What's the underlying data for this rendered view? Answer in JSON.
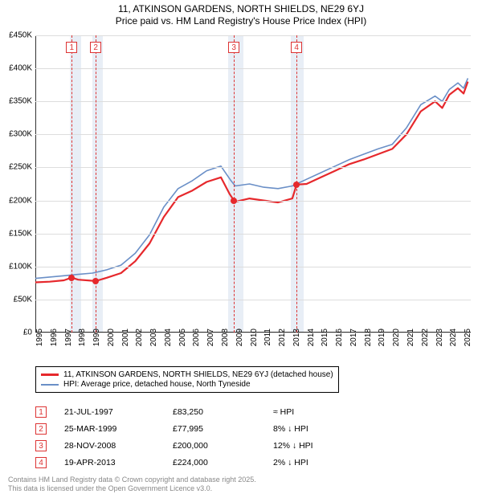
{
  "title_line1": "11, ATKINSON GARDENS, NORTH SHIELDS, NE29 6YJ",
  "title_line2": "Price paid vs. HM Land Registry's House Price Index (HPI)",
  "chart": {
    "type": "line",
    "xlim": [
      1995,
      2025.5
    ],
    "ylim": [
      0,
      450000
    ],
    "ytick_step": 50000,
    "yticks_labels": [
      "£0",
      "£50K",
      "£100K",
      "£150K",
      "£200K",
      "£250K",
      "£300K",
      "£350K",
      "£400K",
      "£450K"
    ],
    "xticks": [
      1995,
      1996,
      1997,
      1998,
      1999,
      2000,
      2001,
      2002,
      2003,
      2004,
      2005,
      2006,
      2007,
      2008,
      2009,
      2010,
      2011,
      2012,
      2013,
      2014,
      2015,
      2016,
      2017,
      2018,
      2019,
      2020,
      2021,
      2022,
      2023,
      2024,
      2025
    ],
    "background_color": "#ffffff",
    "grid_color": "#dddddd",
    "axis_color": "#333333",
    "shade_color": "#e8eef6",
    "marker_line_color": "#dd3333",
    "series": {
      "property": {
        "color": "#e6282c",
        "width": 2.2,
        "label": "11, ATKINSON GARDENS, NORTH SHIELDS, NE29 6YJ (detached house)",
        "points": [
          [
            1995,
            76000
          ],
          [
            1996,
            77000
          ],
          [
            1997,
            79000
          ],
          [
            1997.55,
            83250
          ],
          [
            1998,
            80000
          ],
          [
            1999.23,
            77995
          ],
          [
            2000,
            83000
          ],
          [
            2001,
            90000
          ],
          [
            2002,
            108000
          ],
          [
            2003,
            135000
          ],
          [
            2004,
            175000
          ],
          [
            2005,
            205000
          ],
          [
            2006,
            215000
          ],
          [
            2007,
            228000
          ],
          [
            2008,
            235000
          ],
          [
            2008.6,
            210000
          ],
          [
            2008.91,
            200000
          ],
          [
            2009,
            198000
          ],
          [
            2010,
            203000
          ],
          [
            2011,
            200000
          ],
          [
            2012,
            197000
          ],
          [
            2013,
            203000
          ],
          [
            2013.3,
            224000
          ],
          [
            2014,
            225000
          ],
          [
            2015,
            235000
          ],
          [
            2016,
            245000
          ],
          [
            2017,
            255000
          ],
          [
            2018,
            262000
          ],
          [
            2019,
            270000
          ],
          [
            2020,
            278000
          ],
          [
            2021,
            300000
          ],
          [
            2022,
            335000
          ],
          [
            2023,
            350000
          ],
          [
            2023.5,
            340000
          ],
          [
            2024,
            360000
          ],
          [
            2024.6,
            370000
          ],
          [
            2025,
            362000
          ],
          [
            2025.3,
            380000
          ]
        ]
      },
      "hpi": {
        "color": "#6a8fc7",
        "width": 1.6,
        "label": "HPI: Average price, detached house, North Tyneside",
        "points": [
          [
            1995,
            82000
          ],
          [
            1996,
            84000
          ],
          [
            1997,
            86000
          ],
          [
            1998,
            88000
          ],
          [
            1999,
            90000
          ],
          [
            2000,
            95000
          ],
          [
            2001,
            102000
          ],
          [
            2002,
            120000
          ],
          [
            2003,
            148000
          ],
          [
            2004,
            190000
          ],
          [
            2005,
            218000
          ],
          [
            2006,
            230000
          ],
          [
            2007,
            245000
          ],
          [
            2008,
            252000
          ],
          [
            2008.7,
            230000
          ],
          [
            2009,
            222000
          ],
          [
            2010,
            225000
          ],
          [
            2011,
            220000
          ],
          [
            2012,
            218000
          ],
          [
            2013,
            222000
          ],
          [
            2014,
            232000
          ],
          [
            2015,
            242000
          ],
          [
            2016,
            252000
          ],
          [
            2017,
            262000
          ],
          [
            2018,
            270000
          ],
          [
            2019,
            278000
          ],
          [
            2020,
            285000
          ],
          [
            2021,
            310000
          ],
          [
            2022,
            345000
          ],
          [
            2023,
            358000
          ],
          [
            2023.5,
            350000
          ],
          [
            2024,
            368000
          ],
          [
            2024.6,
            378000
          ],
          [
            2025,
            370000
          ],
          [
            2025.3,
            385000
          ]
        ]
      }
    },
    "sale_markers": [
      {
        "n": 1,
        "x": 1997.55,
        "y": 83250
      },
      {
        "n": 2,
        "x": 1999.23,
        "y": 77995
      },
      {
        "n": 3,
        "x": 2008.91,
        "y": 200000
      },
      {
        "n": 4,
        "x": 2013.3,
        "y": 224000
      }
    ],
    "shaded_bands": [
      {
        "from": 1997.4,
        "to": 1998.2
      },
      {
        "from": 1999.0,
        "to": 1999.7
      },
      {
        "from": 2008.5,
        "to": 2009.6
      },
      {
        "from": 2012.9,
        "to": 2013.8
      }
    ]
  },
  "legend": {
    "items": [
      {
        "color": "#e6282c",
        "label": "11, ATKINSON GARDENS, NORTH SHIELDS, NE29 6YJ (detached house)"
      },
      {
        "color": "#6a8fc7",
        "label": "HPI: Average price, detached house, North Tyneside"
      }
    ]
  },
  "transactions": [
    {
      "n": "1",
      "date": "21-JUL-1997",
      "price": "£83,250",
      "diff": "≈ HPI"
    },
    {
      "n": "2",
      "date": "25-MAR-1999",
      "price": "£77,995",
      "diff": "8% ↓ HPI"
    },
    {
      "n": "3",
      "date": "28-NOV-2008",
      "price": "£200,000",
      "diff": "12% ↓ HPI"
    },
    {
      "n": "4",
      "date": "19-APR-2013",
      "price": "£224,000",
      "diff": "2% ↓ HPI"
    }
  ],
  "footer_line1": "Contains HM Land Registry data © Crown copyright and database right 2025.",
  "footer_line2": "This data is licensed under the Open Government Licence v3.0."
}
